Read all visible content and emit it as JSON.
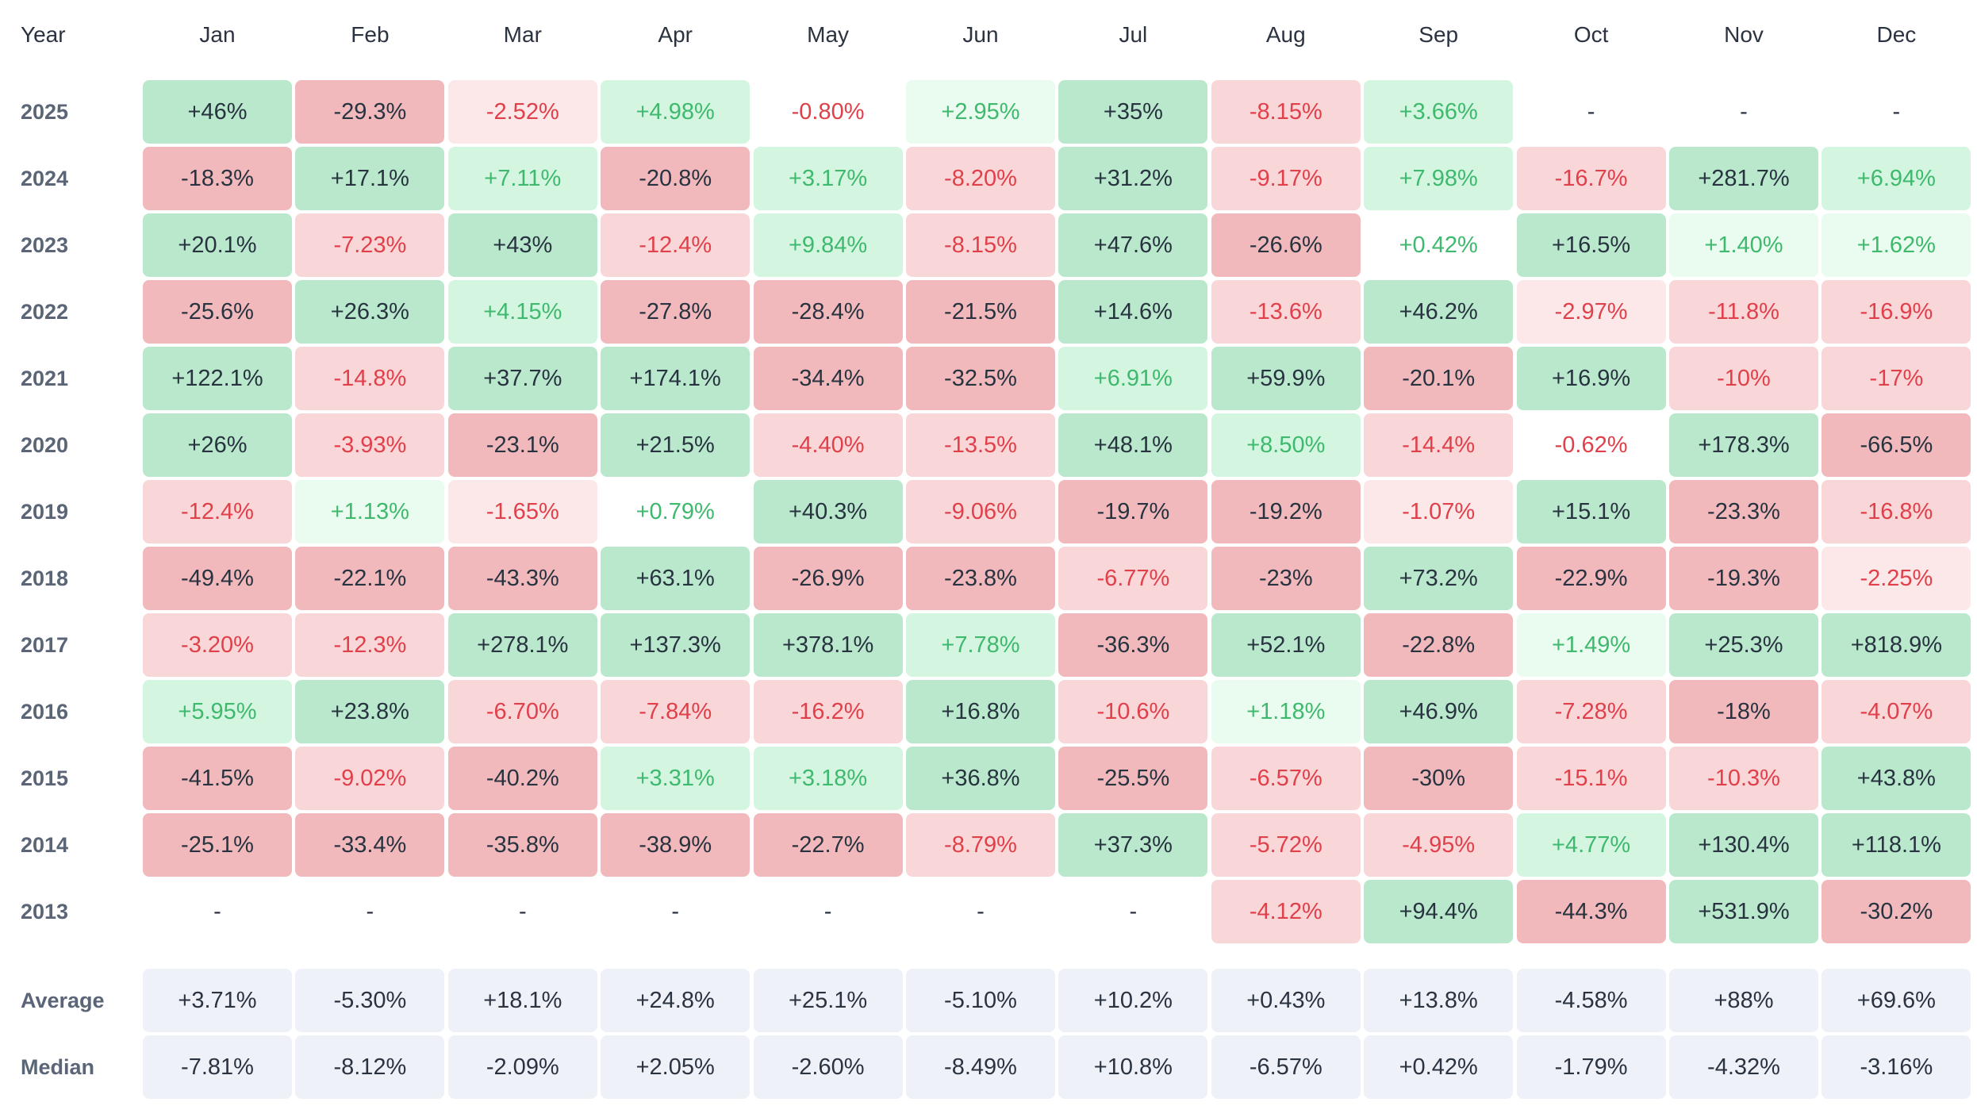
{
  "chart_data": {
    "type": "heatmap",
    "year_header": "Year",
    "months": [
      "Jan",
      "Feb",
      "Mar",
      "Apr",
      "May",
      "Jun",
      "Jul",
      "Aug",
      "Sep",
      "Oct",
      "Nov",
      "Dec"
    ],
    "rows": [
      {
        "label": "2025",
        "values": [
          "+46%",
          "-29.3%",
          "-2.52%",
          "+4.98%",
          "-0.80%",
          "+2.95%",
          "+35%",
          "-8.15%",
          "+3.66%",
          "-",
          "-",
          "-"
        ]
      },
      {
        "label": "2024",
        "values": [
          "-18.3%",
          "+17.1%",
          "+7.11%",
          "-20.8%",
          "+3.17%",
          "-8.20%",
          "+31.2%",
          "-9.17%",
          "+7.98%",
          "-16.7%",
          "+281.7%",
          "+6.94%"
        ]
      },
      {
        "label": "2023",
        "values": [
          "+20.1%",
          "-7.23%",
          "+43%",
          "-12.4%",
          "+9.84%",
          "-8.15%",
          "+47.6%",
          "-26.6%",
          "+0.42%",
          "+16.5%",
          "+1.40%",
          "+1.62%"
        ]
      },
      {
        "label": "2022",
        "values": [
          "-25.6%",
          "+26.3%",
          "+4.15%",
          "-27.8%",
          "-28.4%",
          "-21.5%",
          "+14.6%",
          "-13.6%",
          "+46.2%",
          "-2.97%",
          "-11.8%",
          "-16.9%"
        ]
      },
      {
        "label": "2021",
        "values": [
          "+122.1%",
          "-14.8%",
          "+37.7%",
          "+174.1%",
          "-34.4%",
          "-32.5%",
          "+6.91%",
          "+59.9%",
          "-20.1%",
          "+16.9%",
          "-10%",
          "-17%"
        ]
      },
      {
        "label": "2020",
        "values": [
          "+26%",
          "-3.93%",
          "-23.1%",
          "+21.5%",
          "-4.40%",
          "-13.5%",
          "+48.1%",
          "+8.50%",
          "-14.4%",
          "-0.62%",
          "+178.3%",
          "-66.5%"
        ]
      },
      {
        "label": "2019",
        "values": [
          "-12.4%",
          "+1.13%",
          "-1.65%",
          "+0.79%",
          "+40.3%",
          "-9.06%",
          "-19.7%",
          "-19.2%",
          "-1.07%",
          "+15.1%",
          "-23.3%",
          "-16.8%"
        ]
      },
      {
        "label": "2018",
        "values": [
          "-49.4%",
          "-22.1%",
          "-43.3%",
          "+63.1%",
          "-26.9%",
          "-23.8%",
          "-6.77%",
          "-23%",
          "+73.2%",
          "-22.9%",
          "-19.3%",
          "-2.25%"
        ]
      },
      {
        "label": "2017",
        "values": [
          "-3.20%",
          "-12.3%",
          "+278.1%",
          "+137.3%",
          "+378.1%",
          "+7.78%",
          "-36.3%",
          "+52.1%",
          "-22.8%",
          "+1.49%",
          "+25.3%",
          "+818.9%"
        ]
      },
      {
        "label": "2016",
        "values": [
          "+5.95%",
          "+23.8%",
          "-6.70%",
          "-7.84%",
          "-16.2%",
          "+16.8%",
          "-10.6%",
          "+1.18%",
          "+46.9%",
          "-7.28%",
          "-18%",
          "-4.07%"
        ]
      },
      {
        "label": "2015",
        "values": [
          "-41.5%",
          "-9.02%",
          "-40.2%",
          "+3.31%",
          "+3.18%",
          "+36.8%",
          "-25.5%",
          "-6.57%",
          "-30%",
          "-15.1%",
          "-10.3%",
          "+43.8%"
        ]
      },
      {
        "label": "2014",
        "values": [
          "-25.1%",
          "-33.4%",
          "-35.8%",
          "-38.9%",
          "-22.7%",
          "-8.79%",
          "+37.3%",
          "-5.72%",
          "-4.95%",
          "+4.77%",
          "+130.4%",
          "+118.1%"
        ]
      },
      {
        "label": "2013",
        "values": [
          "-",
          "-",
          "-",
          "-",
          "-",
          "-",
          "-",
          "-4.12%",
          "+94.4%",
          "-44.3%",
          "+531.9%",
          "-30.2%"
        ]
      }
    ],
    "summary_rows": [
      {
        "label": "Average",
        "values": [
          "+3.71%",
          "-5.30%",
          "+18.1%",
          "+24.8%",
          "+25.1%",
          "-5.10%",
          "+10.2%",
          "+0.43%",
          "+13.8%",
          "-4.58%",
          "+88%",
          "+69.6%"
        ]
      },
      {
        "label": "Median",
        "values": [
          "-7.81%",
          "-8.12%",
          "-2.09%",
          "+2.05%",
          "-2.60%",
          "-8.49%",
          "+10.8%",
          "-6.57%",
          "+0.42%",
          "-1.79%",
          "-4.32%",
          "-3.16%"
        ]
      }
    ],
    "colors": {
      "strong_positive_bg": "#b9e8cd",
      "light_positive_bg": "#d4f6e1",
      "faint_positive_bg": "#eafcef",
      "strong_negative_bg": "#f2b9bc",
      "light_negative_bg": "#f9d6d8",
      "faint_negative_bg": "#fce8e9",
      "positive_text": "#3eb96d",
      "negative_text": "#e0404a",
      "summary_bg": "#eef2f8"
    }
  }
}
